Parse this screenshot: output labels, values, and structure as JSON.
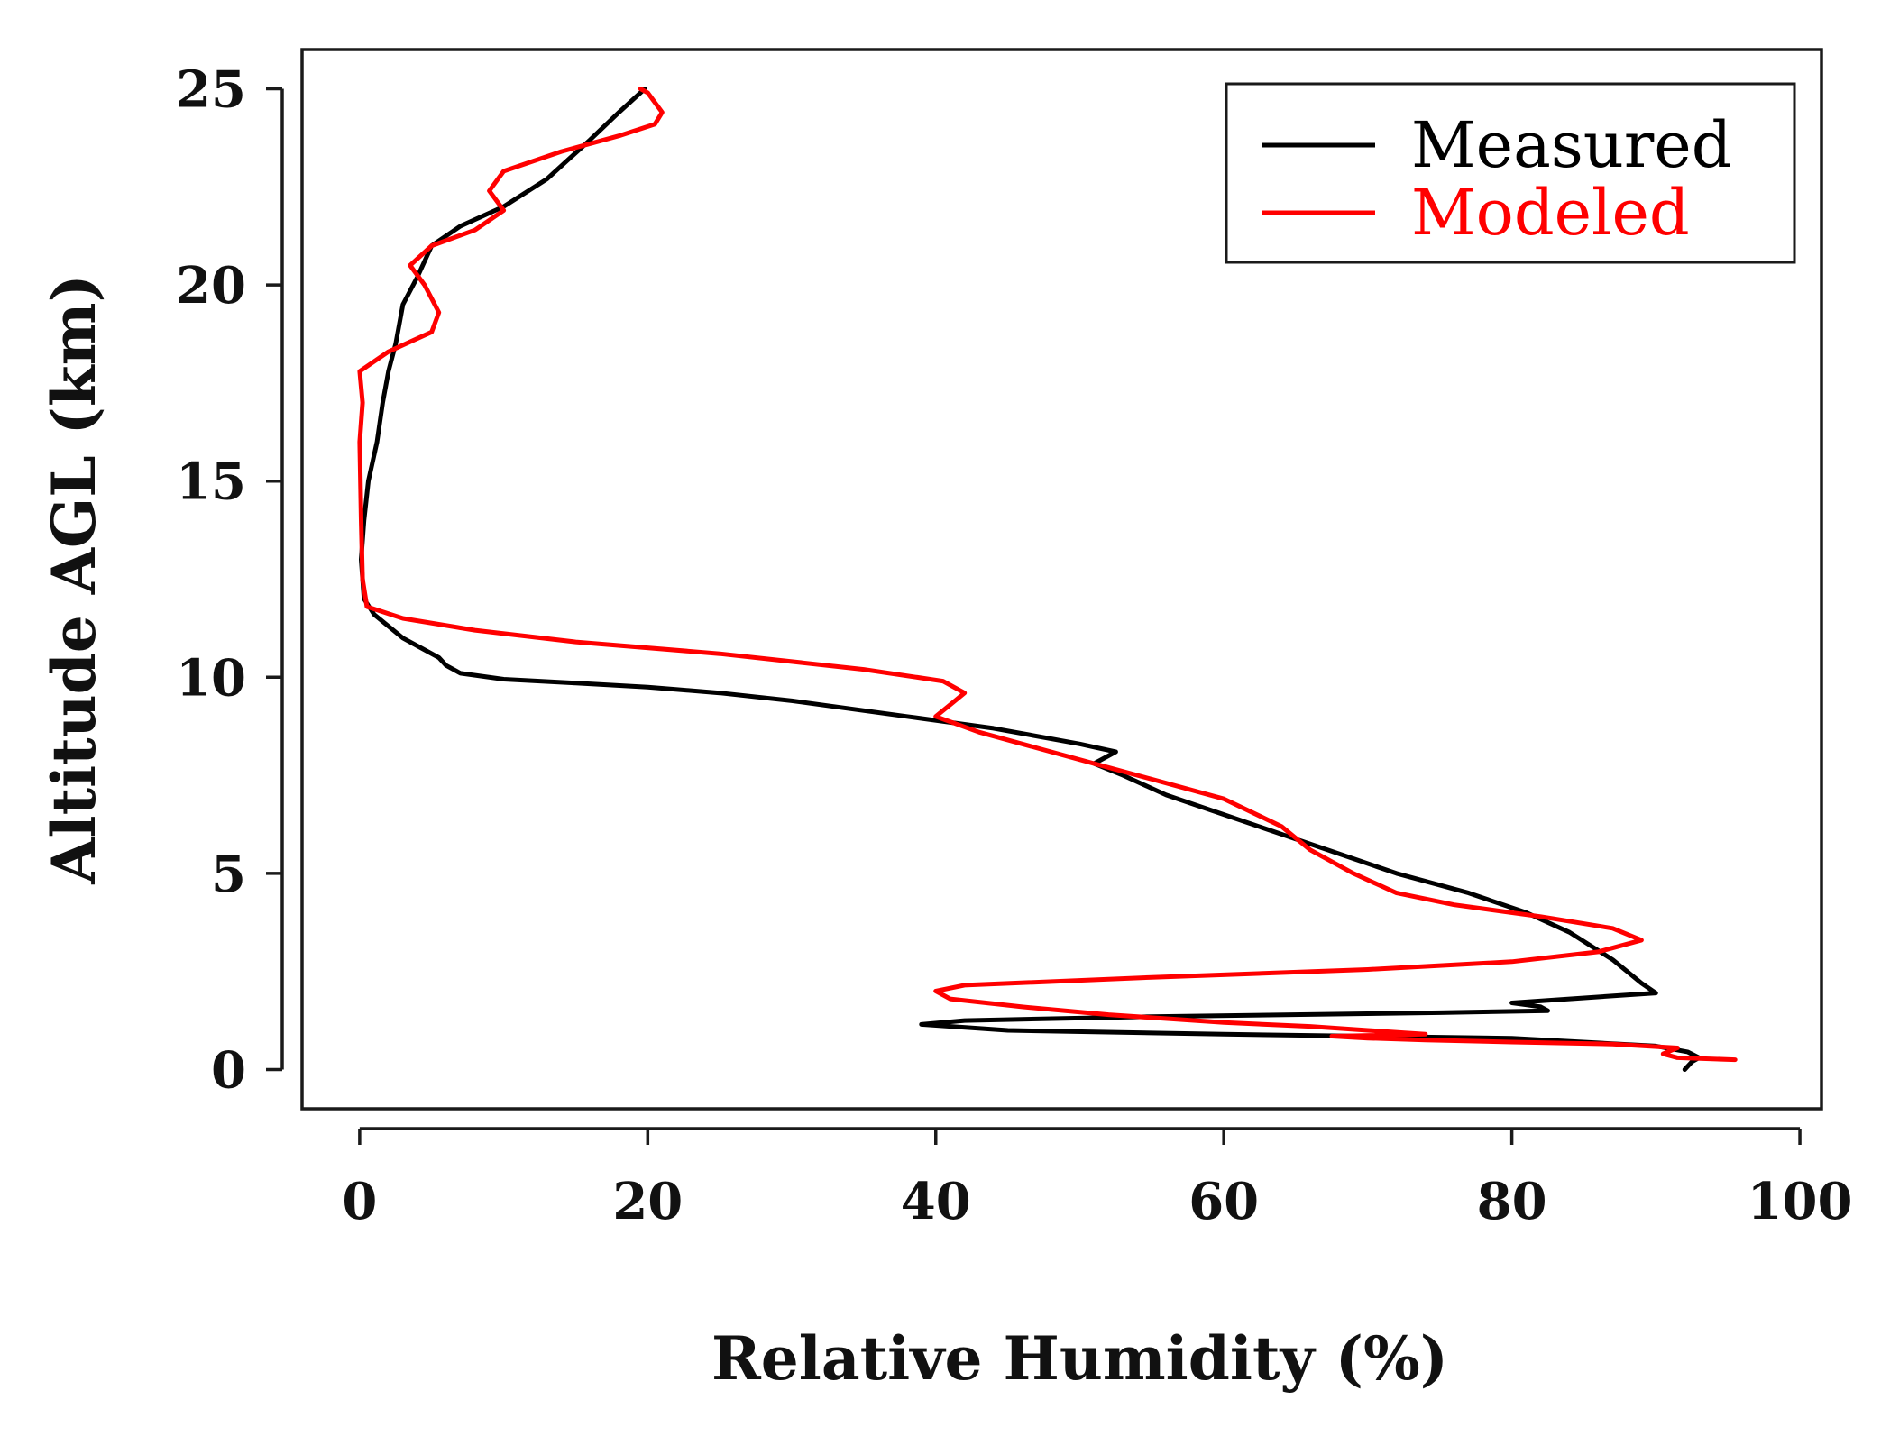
{
  "chart_data": {
    "type": "line",
    "title": "",
    "xlabel": "Relative Humidity (%)",
    "ylabel": "Altitude AGL (km)",
    "xlim": [
      -4,
      101.5
    ],
    "ylim": [
      -1,
      26
    ],
    "xticks": [
      0,
      20,
      40,
      60,
      80,
      100
    ],
    "yticks": [
      0,
      5,
      10,
      15,
      20,
      25
    ],
    "grid": false,
    "legend_position": "top-right",
    "series": [
      {
        "name": "Measured",
        "color": "#000000",
        "points": [
          [
            92.0,
            0.0
          ],
          [
            92.5,
            0.2
          ],
          [
            93.0,
            0.3
          ],
          [
            92.2,
            0.45
          ],
          [
            90.0,
            0.6
          ],
          [
            80.0,
            0.8
          ],
          [
            60.0,
            0.9
          ],
          [
            45.0,
            1.0
          ],
          [
            39.0,
            1.15
          ],
          [
            42.0,
            1.25
          ],
          [
            55.0,
            1.35
          ],
          [
            75.0,
            1.45
          ],
          [
            82.5,
            1.5
          ],
          [
            82.0,
            1.6
          ],
          [
            81.0,
            1.65
          ],
          [
            80.0,
            1.7
          ],
          [
            84.0,
            1.8
          ],
          [
            90.0,
            1.95
          ],
          [
            89.0,
            2.2
          ],
          [
            87.0,
            2.8
          ],
          [
            84.0,
            3.5
          ],
          [
            81.0,
            4.0
          ],
          [
            77.0,
            4.5
          ],
          [
            72.0,
            5.0
          ],
          [
            68.0,
            5.5
          ],
          [
            64.0,
            6.0
          ],
          [
            60.0,
            6.5
          ],
          [
            56.0,
            7.0
          ],
          [
            53.0,
            7.5
          ],
          [
            51.0,
            7.8
          ],
          [
            52.5,
            8.1
          ],
          [
            50.0,
            8.3
          ],
          [
            44.0,
            8.7
          ],
          [
            38.0,
            9.0
          ],
          [
            30.0,
            9.4
          ],
          [
            25.0,
            9.6
          ],
          [
            20.0,
            9.75
          ],
          [
            15.0,
            9.85
          ],
          [
            10.0,
            9.95
          ],
          [
            7.0,
            10.1
          ],
          [
            6.0,
            10.3
          ],
          [
            5.5,
            10.5
          ],
          [
            4.0,
            10.8
          ],
          [
            3.0,
            11.0
          ],
          [
            2.0,
            11.3
          ],
          [
            1.0,
            11.6
          ],
          [
            0.3,
            12.0
          ],
          [
            0.1,
            13.0
          ],
          [
            0.3,
            14.0
          ],
          [
            0.6,
            15.0
          ],
          [
            1.2,
            16.0
          ],
          [
            1.6,
            17.0
          ],
          [
            2.0,
            17.8
          ],
          [
            2.5,
            18.5
          ],
          [
            3.0,
            19.5
          ],
          [
            4.0,
            20.2
          ],
          [
            5.0,
            21.0
          ],
          [
            7.0,
            21.5
          ],
          [
            10.0,
            22.0
          ],
          [
            13.0,
            22.7
          ],
          [
            16.0,
            23.7
          ],
          [
            18.0,
            24.4
          ],
          [
            19.8,
            25.0
          ]
        ]
      },
      {
        "name": "Modeled",
        "color": "#ff0000",
        "points": [
          [
            95.5,
            0.25
          ],
          [
            91.5,
            0.3
          ],
          [
            90.5,
            0.4
          ],
          [
            91.5,
            0.55
          ],
          [
            87.0,
            0.65
          ],
          [
            80.0,
            0.7
          ],
          [
            74.0,
            0.75
          ],
          [
            70.0,
            0.8
          ],
          [
            67.5,
            0.85
          ],
          [
            74.0,
            0.9
          ],
          [
            70.0,
            1.0
          ],
          [
            66.0,
            1.1
          ],
          [
            60.0,
            1.2
          ],
          [
            52.0,
            1.4
          ],
          [
            46.0,
            1.6
          ],
          [
            41.0,
            1.8
          ],
          [
            40.0,
            2.0
          ],
          [
            42.0,
            2.15
          ],
          [
            55.0,
            2.35
          ],
          [
            70.0,
            2.55
          ],
          [
            80.0,
            2.75
          ],
          [
            86.0,
            3.0
          ],
          [
            89.0,
            3.3
          ],
          [
            87.0,
            3.6
          ],
          [
            82.0,
            3.9
          ],
          [
            76.0,
            4.2
          ],
          [
            72.0,
            4.5
          ],
          [
            69.0,
            5.0
          ],
          [
            66.0,
            5.6
          ],
          [
            64.0,
            6.2
          ],
          [
            60.0,
            6.9
          ],
          [
            55.0,
            7.4
          ],
          [
            52.0,
            7.7
          ],
          [
            47.0,
            8.2
          ],
          [
            43.0,
            8.6
          ],
          [
            40.0,
            9.0
          ],
          [
            41.0,
            9.3
          ],
          [
            42.0,
            9.6
          ],
          [
            40.5,
            9.9
          ],
          [
            35.0,
            10.2
          ],
          [
            25.0,
            10.6
          ],
          [
            15.0,
            10.9
          ],
          [
            8.0,
            11.2
          ],
          [
            3.0,
            11.5
          ],
          [
            0.5,
            11.8
          ],
          [
            0.2,
            12.5
          ],
          [
            0.1,
            14.0
          ],
          [
            0.0,
            16.0
          ],
          [
            0.2,
            17.0
          ],
          [
            0.0,
            17.8
          ],
          [
            2.0,
            18.3
          ],
          [
            5.0,
            18.8
          ],
          [
            5.5,
            19.3
          ],
          [
            4.5,
            20.0
          ],
          [
            3.5,
            20.5
          ],
          [
            5.0,
            21.0
          ],
          [
            8.0,
            21.4
          ],
          [
            10.0,
            21.9
          ],
          [
            9.0,
            22.4
          ],
          [
            10.0,
            22.9
          ],
          [
            14.0,
            23.4
          ],
          [
            18.0,
            23.8
          ],
          [
            20.5,
            24.1
          ],
          [
            21.0,
            24.4
          ],
          [
            20.0,
            24.9
          ],
          [
            19.5,
            25.0
          ]
        ]
      }
    ]
  }
}
